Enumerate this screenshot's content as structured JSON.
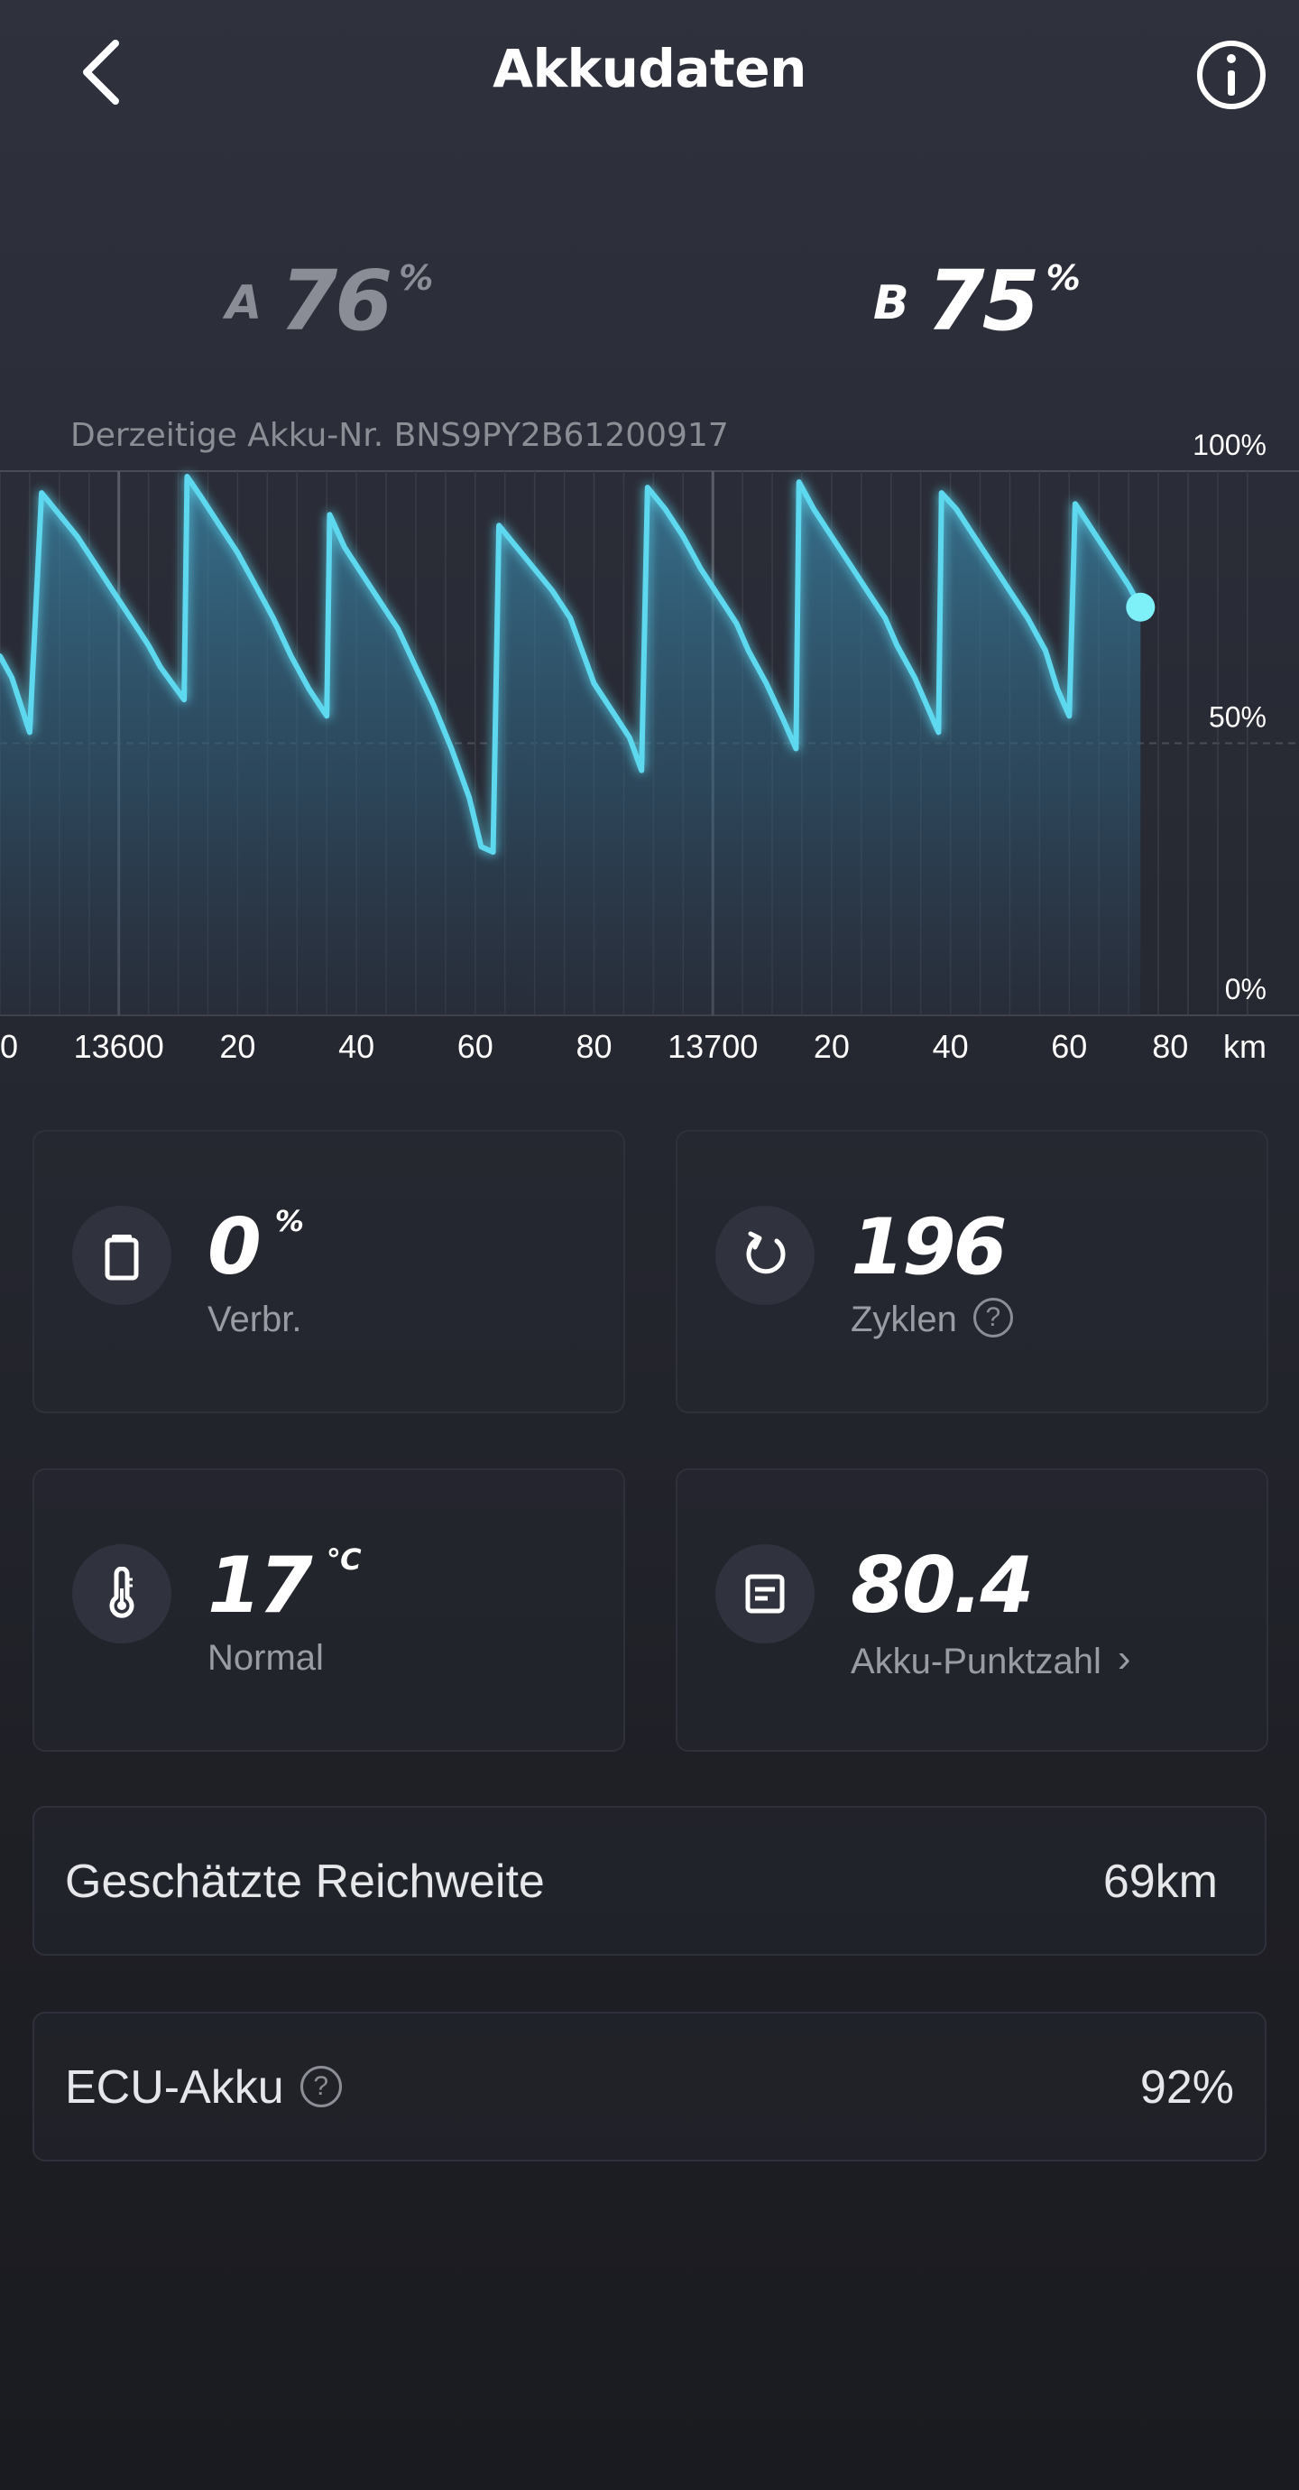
{
  "header": {
    "title": "Akkudaten"
  },
  "batteries": {
    "a": {
      "label": "A",
      "value": "76",
      "unit": "%"
    },
    "b": {
      "label": "B",
      "value": "75",
      "unit": "%"
    }
  },
  "chart": {
    "serial": "Derzeitige Akku-Nr. BNS9PY2B61200917"
  },
  "chart_data": {
    "type": "area",
    "xlabel": "km",
    "ylim": [
      0,
      100
    ],
    "y_ticks": [
      "100%",
      "50%",
      "0%"
    ],
    "x_ticks": [
      "0",
      "13600",
      "20",
      "40",
      "60",
      "80",
      "13700",
      "20",
      "40",
      "60",
      "80"
    ],
    "xlim": [
      13580,
      13790
    ],
    "x_unit": "km",
    "series": [
      {
        "points": [
          [
            13580,
            66
          ],
          [
            13582,
            62
          ],
          [
            13585,
            52
          ],
          [
            13587,
            96
          ],
          [
            13590,
            92
          ],
          [
            13593,
            88
          ],
          [
            13596,
            83
          ],
          [
            13599,
            78
          ],
          [
            13602,
            73
          ],
          [
            13605,
            68
          ],
          [
            13607,
            64
          ],
          [
            13609,
            61
          ],
          [
            13611,
            58
          ],
          [
            13611.5,
            99
          ],
          [
            13614,
            95
          ],
          [
            13617,
            90
          ],
          [
            13620,
            85
          ],
          [
            13623,
            79
          ],
          [
            13626,
            73
          ],
          [
            13629,
            66
          ],
          [
            13632,
            60
          ],
          [
            13635,
            55
          ],
          [
            13635.5,
            92
          ],
          [
            13638,
            86
          ],
          [
            13641,
            81
          ],
          [
            13644,
            76
          ],
          [
            13647,
            71
          ],
          [
            13650,
            64
          ],
          [
            13653,
            57
          ],
          [
            13656,
            49
          ],
          [
            13659,
            40
          ],
          [
            13661,
            31
          ],
          [
            13663,
            30
          ],
          [
            13664,
            90
          ],
          [
            13667,
            86
          ],
          [
            13670,
            82
          ],
          [
            13673,
            78
          ],
          [
            13676,
            73
          ],
          [
            13678,
            67
          ],
          [
            13680,
            61
          ],
          [
            13683,
            56
          ],
          [
            13686,
            51
          ],
          [
            13688,
            45
          ],
          [
            13689,
            97
          ],
          [
            13692,
            93
          ],
          [
            13695,
            88
          ],
          [
            13698,
            82
          ],
          [
            13701,
            77
          ],
          [
            13704,
            72
          ],
          [
            13706,
            67
          ],
          [
            13709,
            61
          ],
          [
            13712,
            54
          ],
          [
            13714,
            49
          ],
          [
            13714.5,
            98
          ],
          [
            13717,
            93
          ],
          [
            13720,
            88
          ],
          [
            13723,
            83
          ],
          [
            13726,
            78
          ],
          [
            13729,
            73
          ],
          [
            13731,
            68
          ],
          [
            13734,
            62
          ],
          [
            13736,
            57
          ],
          [
            13738,
            52
          ],
          [
            13738.5,
            96
          ],
          [
            13741,
            93
          ],
          [
            13744,
            88
          ],
          [
            13747,
            83
          ],
          [
            13750,
            78
          ],
          [
            13753,
            73
          ],
          [
            13756,
            67
          ],
          [
            13758,
            60
          ],
          [
            13760,
            55
          ],
          [
            13761,
            94
          ],
          [
            13764,
            89
          ],
          [
            13767,
            84
          ],
          [
            13770,
            79
          ],
          [
            13772,
            75
          ]
        ]
      }
    ]
  },
  "stats": [
    {
      "value": "0",
      "unit": "%",
      "label": "Verbr.",
      "icon": "battery-icon"
    },
    {
      "value": "196",
      "unit": "",
      "label": "Zyklen",
      "icon": "refresh-icon"
    },
    {
      "value": "17",
      "unit": "℃",
      "label": "Normal",
      "icon": "thermometer-icon"
    },
    {
      "value": "80.4",
      "unit": "",
      "label": "Akku-Punktzahl",
      "icon": "document-icon"
    }
  ],
  "range": {
    "label": "Geschätzte Reichweite",
    "value": "69km"
  },
  "ecu": {
    "label": "ECU-Akku",
    "value": "92%"
  },
  "colors": {
    "accent": "#5dd8ef",
    "background": "#2a2c37",
    "card_border": "#2f313a"
  }
}
